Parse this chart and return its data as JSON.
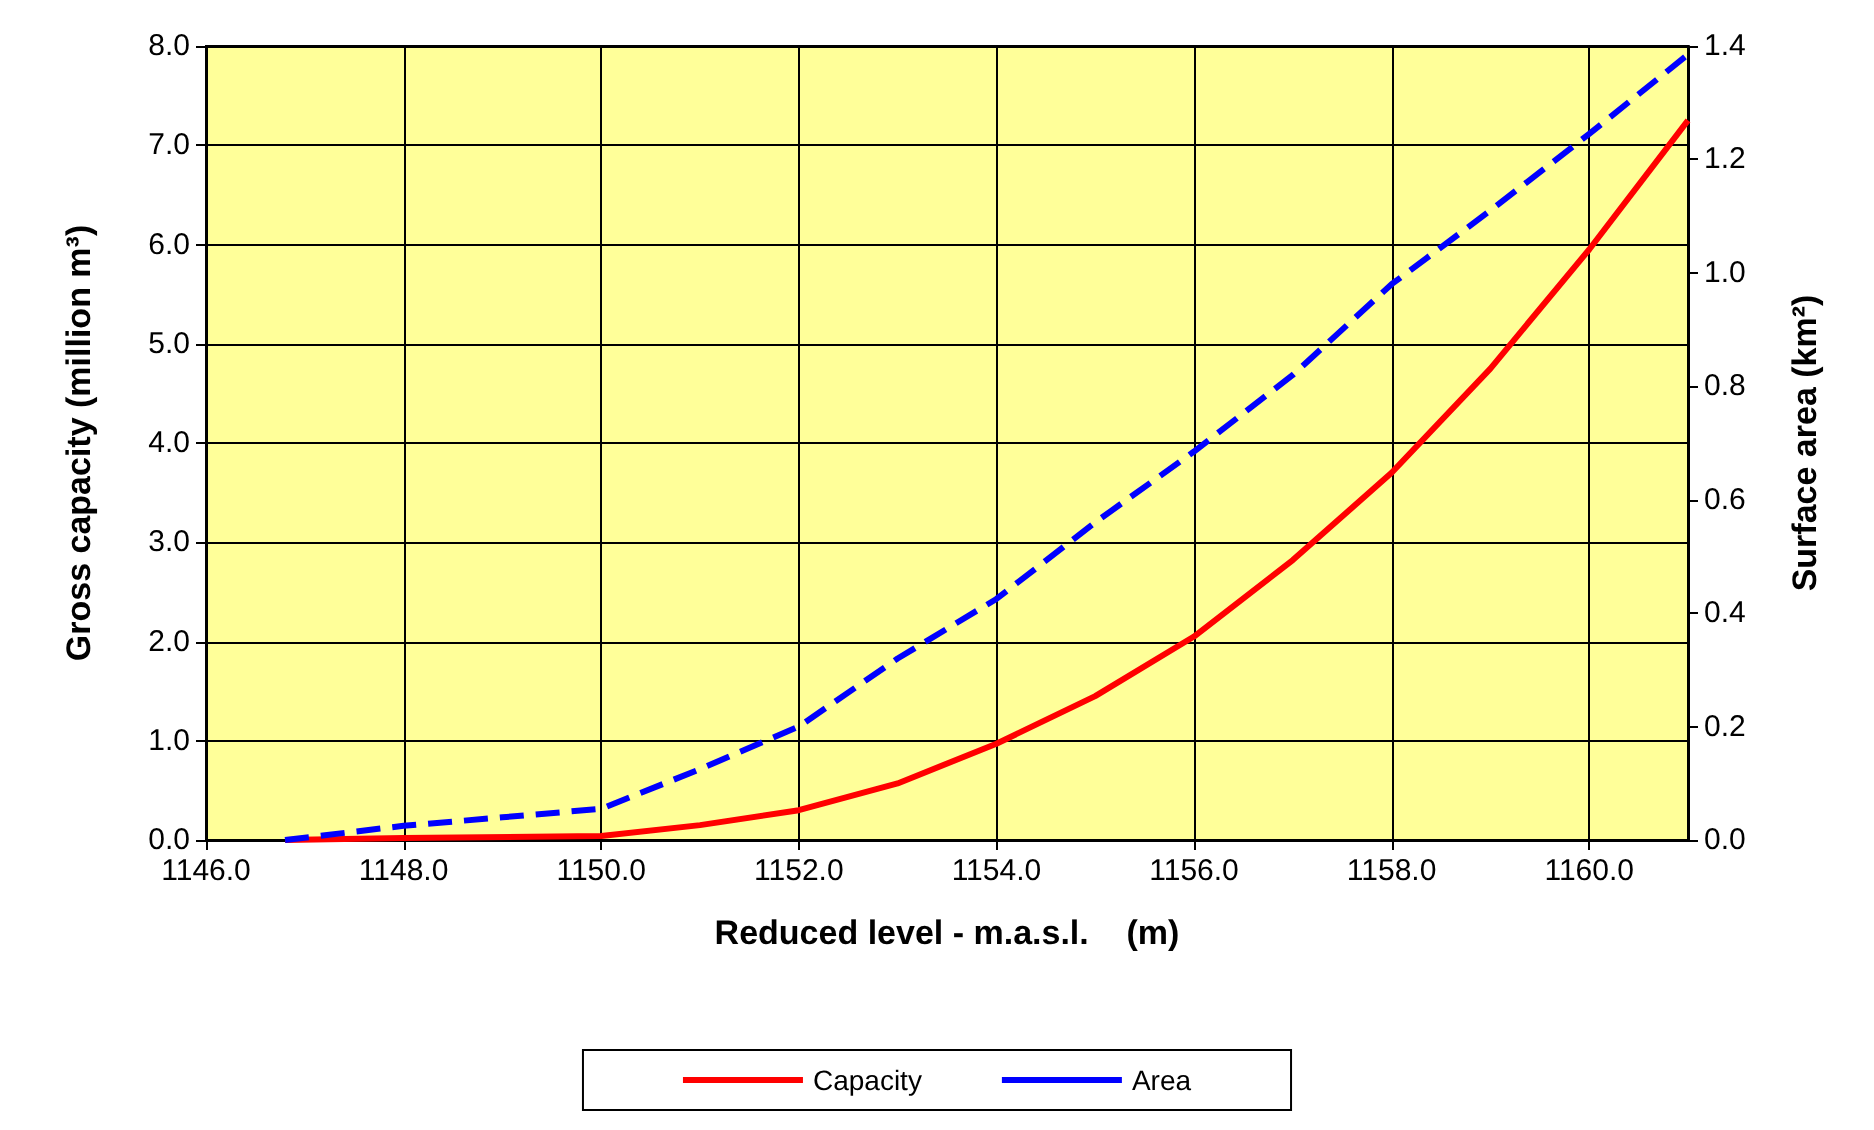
{
  "chart_data": {
    "type": "line",
    "xlabel": "Reduced level - m.a.s.l.    (m)",
    "ylabel": "Gross capacity (million m³)",
    "y2label": "Surface area (km²)",
    "xlim": [
      1146,
      1161
    ],
    "xticks": [
      {
        "value": 1146,
        "label": "1146.0"
      },
      {
        "value": 1148,
        "label": "1148.0"
      },
      {
        "value": 1150,
        "label": "1150.0"
      },
      {
        "value": 1152,
        "label": "1152.0"
      },
      {
        "value": 1154,
        "label": "1154.0"
      },
      {
        "value": 1156,
        "label": "1156.0"
      },
      {
        "value": 1158,
        "label": "1158.0"
      },
      {
        "value": 1160,
        "label": "1160.0"
      }
    ],
    "ylim": [
      0,
      8
    ],
    "yticks": [
      {
        "value": 0,
        "label": "0.0"
      },
      {
        "value": 1,
        "label": "1.0"
      },
      {
        "value": 2,
        "label": "2.0"
      },
      {
        "value": 3,
        "label": "3.0"
      },
      {
        "value": 4,
        "label": "4.0"
      },
      {
        "value": 5,
        "label": "5.0"
      },
      {
        "value": 6,
        "label": "6.0"
      },
      {
        "value": 7,
        "label": "7.0"
      },
      {
        "value": 8,
        "label": "8.0"
      }
    ],
    "y2lim": [
      0,
      1.4
    ],
    "y2ticks": [
      {
        "value": 0,
        "label": "0.0"
      },
      {
        "value": 0.2,
        "label": "0.2"
      },
      {
        "value": 0.4,
        "label": "0.4"
      },
      {
        "value": 0.6,
        "label": "0.6"
      },
      {
        "value": 0.8,
        "label": "0.8"
      },
      {
        "value": 1,
        "label": "1.0"
      },
      {
        "value": 1.2,
        "label": "1.2"
      },
      {
        "value": 1.4,
        "label": "1.4"
      }
    ],
    "grid": true,
    "legend": "bottom",
    "marker": "none",
    "series": [
      {
        "name": "Capacity",
        "color": "#ff0000",
        "line_style": "solid",
        "x": [
          1146.8,
          1148,
          1150,
          1151,
          1152,
          1153,
          1154,
          1155,
          1156,
          1157,
          1158,
          1159,
          1160,
          1161
        ],
        "values": [
          0,
          0.02,
          0.04,
          0.15,
          0.3,
          0.57,
          0.97,
          1.45,
          2.05,
          2.82,
          3.7,
          4.75,
          5.95,
          7.25
        ]
      },
      {
        "name": "Area",
        "color": "#0000ff",
        "line_style": "dashed",
        "axis": "y2",
        "x": [
          1146.8,
          1148,
          1149,
          1150,
          1151,
          1152,
          1153,
          1154,
          1155,
          1156,
          1157,
          1158,
          1159,
          1160,
          1161
        ],
        "values": [
          0,
          0.025,
          0.04,
          0.055,
          0.125,
          0.2,
          0.32,
          0.425,
          0.56,
          0.685,
          0.82,
          0.98,
          1.11,
          1.245,
          1.385
        ]
      }
    ]
  }
}
